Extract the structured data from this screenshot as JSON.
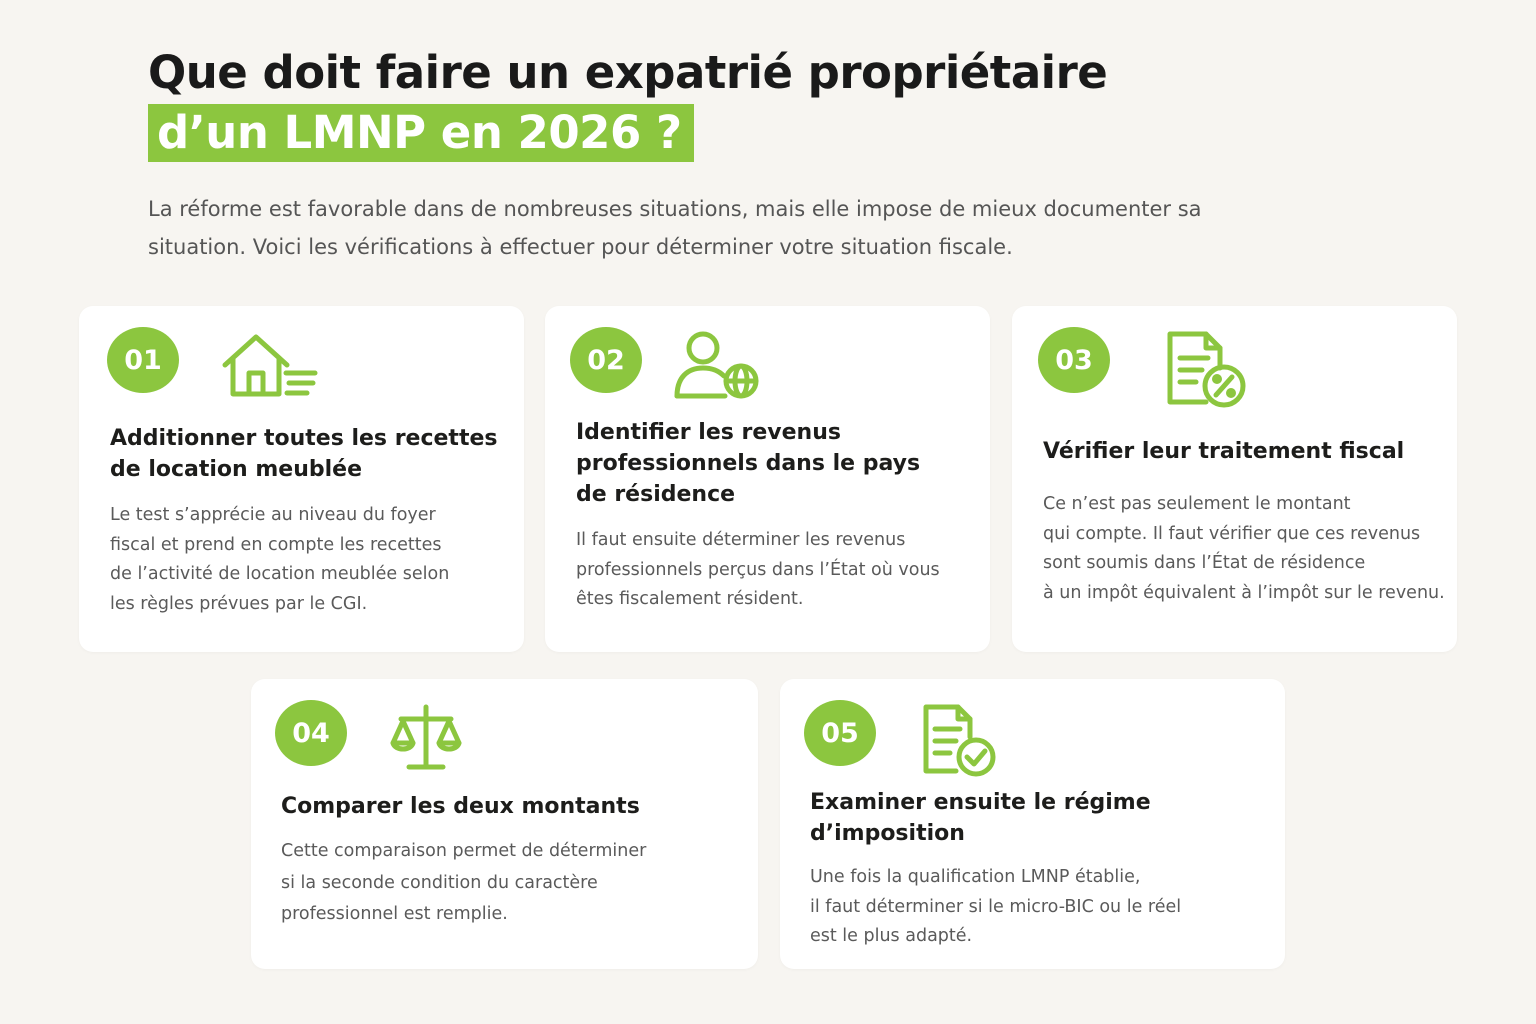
{
  "header": {
    "title_line1": "Que doit faire un expatrié propriétaire",
    "title_line2": "d’un LMNP en 2026 ?",
    "intro": "La réforme est favorable dans de nombreuses situations, mais elle impose de mieux documenter sa situation. Voici les vérifications à effectuer pour déterminer votre situation fiscale."
  },
  "colors": {
    "accent": "#8cc63f",
    "background": "#f7f5f1",
    "card": "#ffffff"
  },
  "steps": [
    {
      "number": "01",
      "icon": "house-icon",
      "title": "Additionner toutes les recettes\nde location meublée",
      "text": "Le test s’apprécie au niveau du foyer\nfiscal et prend en compte les recettes\nde l’activité de location meublée selon\nles règles prévues par le CGI."
    },
    {
      "number": "02",
      "icon": "user-globe-icon",
      "title": "Identifier les revenus\nprofessionnels dans le pays\nde résidence",
      "text": "Il faut ensuite déterminer les revenus\nprofessionnels perçus dans l’État où vous\nêtes fiscalement résident."
    },
    {
      "number": "03",
      "icon": "document-percent-icon",
      "title": "Vérifier leur traitement fiscal",
      "text": "Ce n’est pas seulement le montant\nqui compte. Il faut vérifier que ces revenus\nsont soumis dans l’État de résidence\nà un impôt équivalent à l’impôt sur le revenu."
    },
    {
      "number": "04",
      "icon": "scales-icon",
      "title": "Comparer les deux montants",
      "text": "Cette comparaison permet de déterminer\nsi la seconde condition du caractère\nprofessionnel est remplie."
    },
    {
      "number": "05",
      "icon": "document-check-icon",
      "title": "Examiner ensuite le régime\nd’imposition",
      "text": "Une fois la qualification LMNP établie,\nil faut déterminer si le micro-BIC ou le réel\nest le plus adapté."
    }
  ]
}
